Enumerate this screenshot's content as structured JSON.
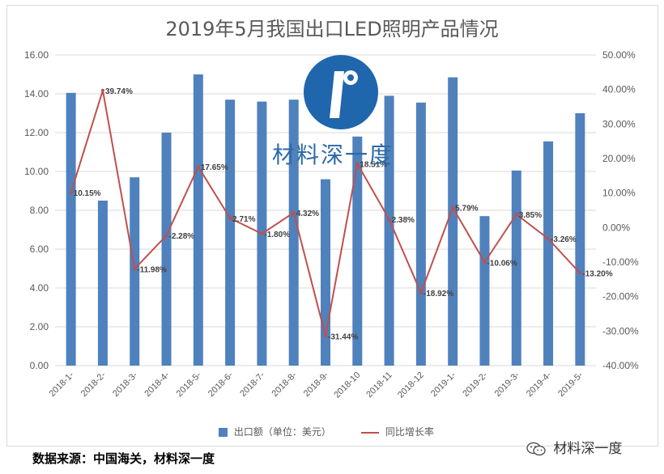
{
  "chart_data": {
    "type": "bar+line",
    "title": "2019年5月我国出口LED照明产品情况",
    "categories": [
      "2018-1-",
      "2018-2-",
      "2018-3-",
      "2018-4-",
      "2018-5-",
      "2018-6-",
      "2018-7-",
      "2018-8-",
      "2018-9-",
      "2018-10",
      "2018-11",
      "2018-12",
      "2019-1-",
      "2019-2-",
      "2019-3-",
      "2019-4-",
      "2019-5-"
    ],
    "series": [
      {
        "name": "出口额（单位：美元）",
        "type": "bar",
        "axis": "left",
        "values": [
          14.05,
          8.5,
          9.7,
          12.0,
          15.0,
          13.7,
          13.6,
          13.7,
          9.6,
          11.8,
          13.9,
          13.55,
          14.85,
          7.7,
          10.05,
          11.55,
          13.0
        ]
      },
      {
        "name": "同比增长率",
        "type": "line",
        "axis": "right",
        "values": [
          10.15,
          39.74,
          -11.98,
          -2.28,
          17.65,
          2.71,
          -1.8,
          4.32,
          -31.44,
          18.51,
          2.38,
          -18.92,
          5.79,
          -10.06,
          3.85,
          -3.26,
          -13.2
        ],
        "labels": [
          "10.15%",
          "39.74%",
          "-11.98%",
          "-2.28%",
          "17.65%",
          "2.71%",
          "-1.80%",
          "4.32%",
          "-31.44%",
          "18.51%",
          "2.38%",
          "-18.92%",
          "5.79%",
          "-10.06%",
          "3.85%",
          "-3.26%",
          "-13.20%"
        ]
      }
    ],
    "y_left": {
      "min": 0,
      "max": 16,
      "step": 2,
      "tick_labels": [
        "0.00",
        "2.00",
        "4.00",
        "6.00",
        "8.00",
        "10.00",
        "12.00",
        "14.00",
        "16.00"
      ]
    },
    "y_right": {
      "min": -40,
      "max": 50,
      "step": 10,
      "tick_labels": [
        "-40.00%",
        "-30.00%",
        "-20.00%",
        "-10.00%",
        "0.00%",
        "10.00%",
        "20.00%",
        "30.00%",
        "40.00%",
        "50.00%"
      ]
    },
    "grid": true,
    "legend_position": "bottom",
    "colors": {
      "bar": "#4f81bd",
      "line": "#c0504d",
      "grid": "#d9d9d9",
      "text": "#595959"
    }
  },
  "logo_text": "材料深一度",
  "source_note": "数据来源：中国海关，材料深一度",
  "watermark_text": "材料深一度"
}
